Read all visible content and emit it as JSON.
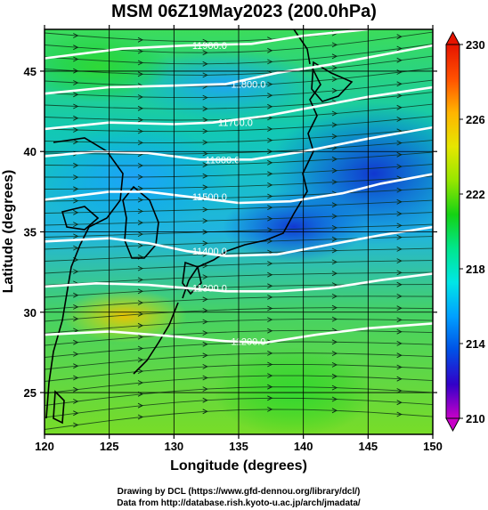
{
  "title": "MSM 06Z19May2023 (200.0hPa)",
  "credits": [
    "Drawing by DCL (https://www.gfd-dennou.org/library/dcl/)",
    "Data from http://database.rish.kyoto-u.ac.jp/arch/jmadata/"
  ],
  "chart_data": {
    "type": "heatmap",
    "title": "MSM 06Z19May2023 (200.0hPa)",
    "xlabel": "Longitude (degrees)",
    "ylabel": "Latitude  (degrees)",
    "xlim": [
      120,
      150
    ],
    "ylim": [
      22.4,
      47.6
    ],
    "x_ticks": [
      120,
      125,
      130,
      135,
      140,
      145,
      150
    ],
    "y_ticks": [
      25,
      30,
      35,
      40,
      45
    ],
    "grid": true,
    "colorbar": {
      "ticks": [
        210,
        214,
        218,
        222,
        226,
        230
      ],
      "min": 210,
      "max": 230,
      "colors": [
        "#c800c8",
        "#3200c8",
        "#0050e6",
        "#00a0ff",
        "#00e6e6",
        "#00e68c",
        "#14d214",
        "#96e600",
        "#e6e600",
        "#ffb400",
        "#ff5000",
        "#e61400"
      ]
    },
    "contours": [
      {
        "label": "11900.0",
        "points": [
          [
            120,
            45.8
          ],
          [
            126,
            46.4
          ],
          [
            131,
            46.6
          ],
          [
            136,
            46.7
          ],
          [
            140,
            47.2
          ],
          [
            145,
            47.6
          ]
        ]
      },
      {
        "label": "11800.0",
        "points": [
          [
            120,
            43.6
          ],
          [
            125,
            44.0
          ],
          [
            130,
            44.1
          ],
          [
            134,
            44.2
          ],
          [
            138,
            44.9
          ],
          [
            142,
            45.4
          ],
          [
            146,
            46.0
          ],
          [
            150,
            46.6
          ]
        ]
      },
      {
        "label": "11700.0",
        "points": [
          [
            120,
            41.4
          ],
          [
            125,
            41.8
          ],
          [
            130,
            41.7
          ],
          [
            133,
            41.8
          ],
          [
            137,
            42.2
          ],
          [
            141,
            42.8
          ],
          [
            145,
            43.4
          ],
          [
            150,
            44.0
          ]
        ]
      },
      {
        "label": "11600.0",
        "points": [
          [
            120,
            39.7
          ],
          [
            124,
            40.0
          ],
          [
            128,
            39.9
          ],
          [
            132,
            39.5
          ],
          [
            136,
            39.5
          ],
          [
            140,
            40.0
          ],
          [
            145,
            40.8
          ],
          [
            150,
            41.5
          ]
        ]
      },
      {
        "label": "11500.0",
        "points": [
          [
            120,
            37.0
          ],
          [
            125,
            37.5
          ],
          [
            128,
            37.5
          ],
          [
            131,
            37.2
          ],
          [
            135,
            36.8
          ],
          [
            139,
            36.9
          ],
          [
            143,
            37.4
          ],
          [
            146,
            38.0
          ],
          [
            150,
            38.6
          ]
        ]
      },
      {
        "label": "11400.0",
        "points": [
          [
            120,
            34.4
          ],
          [
            125,
            34.6
          ],
          [
            128,
            34.3
          ],
          [
            131,
            33.8
          ],
          [
            134,
            33.5
          ],
          [
            138,
            33.6
          ],
          [
            142,
            34.2
          ],
          [
            146,
            34.8
          ],
          [
            150,
            35.3
          ]
        ]
      },
      {
        "label": "11300.0",
        "points": [
          [
            120,
            31.6
          ],
          [
            124,
            31.8
          ],
          [
            128,
            31.7
          ],
          [
            131,
            31.5
          ],
          [
            134,
            31.3
          ],
          [
            138,
            31.3
          ],
          [
            142,
            31.5
          ],
          [
            146,
            32.0
          ],
          [
            150,
            32.4
          ]
        ]
      },
      {
        "label": "11200.0",
        "points": [
          [
            120,
            28.6
          ],
          [
            125,
            28.8
          ],
          [
            130,
            28.5
          ],
          [
            134,
            28.2
          ],
          [
            137,
            28.1
          ],
          [
            141,
            28.6
          ],
          [
            145,
            29.0
          ],
          [
            150,
            29.3
          ]
        ]
      }
    ]
  }
}
